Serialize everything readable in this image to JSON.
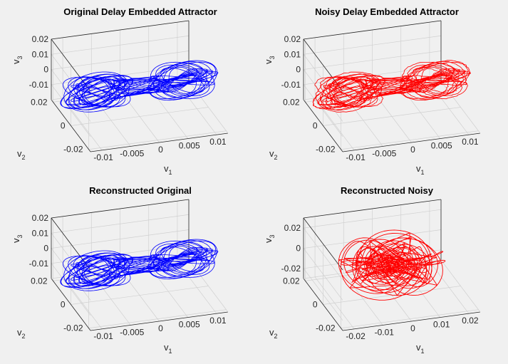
{
  "figure": {
    "background": "#f0f0f0",
    "colors": {
      "original": "#0000ff",
      "noisy": "#ff0000",
      "axis": "#262626",
      "grid": "#d0d0d0"
    }
  },
  "chart_data": [
    {
      "type": "line",
      "subtype": "3d-phase-portrait",
      "title": "Original Delay Embedded Attractor",
      "xlabel": "v",
      "xlabel_sub": "1",
      "ylabel": "v",
      "ylabel_sub": "2",
      "zlabel": "v",
      "zlabel_sub": "3",
      "xlim": [
        -0.012,
        0.012
      ],
      "ylim": [
        -0.022,
        0.022
      ],
      "zlim": [
        -0.02,
        0.02
      ],
      "x_ticks": [
        -0.01,
        -0.005,
        0,
        0.005,
        0.01
      ],
      "x_tick_labels": [
        "-0.01",
        "-0.005",
        "0",
        "0.005",
        "0.01"
      ],
      "y_ticks": [
        -0.02,
        0,
        0.02
      ],
      "y_tick_labels": [
        "-0.02",
        "0",
        "0.02"
      ],
      "z_ticks": [
        -0.01,
        0,
        0.01,
        0.02
      ],
      "z_tick_labels": [
        "-0.01",
        "0",
        "0.01",
        "0.02"
      ],
      "grid": true,
      "series": [
        {
          "color": "#0000ff",
          "shape": "butterfly",
          "lobe_centers_v1": [
            -0.0075,
            0.0075
          ],
          "radius_range": [
            0.0022,
            0.0062
          ],
          "noise": 0
        }
      ]
    },
    {
      "type": "line",
      "subtype": "3d-phase-portrait",
      "title": "Noisy Delay Embedded Attractor",
      "xlabel": "v",
      "xlabel_sub": "1",
      "ylabel": "v",
      "ylabel_sub": "2",
      "zlabel": "v",
      "zlabel_sub": "3",
      "xlim": [
        -0.012,
        0.012
      ],
      "ylim": [
        -0.022,
        0.022
      ],
      "zlim": [
        -0.02,
        0.02
      ],
      "x_ticks": [
        -0.01,
        -0.005,
        0,
        0.005,
        0.01
      ],
      "x_tick_labels": [
        "-0.01",
        "-0.005",
        "0",
        "0.005",
        "0.01"
      ],
      "y_ticks": [
        -0.02,
        0,
        0.02
      ],
      "y_tick_labels": [
        "-0.02",
        "0",
        "0.02"
      ],
      "z_ticks": [
        -0.01,
        0,
        0.01,
        0.02
      ],
      "z_tick_labels": [
        "-0.01",
        "0",
        "0.01",
        "0.02"
      ],
      "grid": true,
      "series": [
        {
          "color": "#ff0000",
          "shape": "butterfly",
          "lobe_centers_v1": [
            -0.0075,
            0.0075
          ],
          "radius_range": [
            0.0022,
            0.0062
          ],
          "noise": 0.00015
        }
      ]
    },
    {
      "type": "line",
      "subtype": "3d-phase-portrait",
      "title": "Reconstructed Original",
      "xlabel": "v",
      "xlabel_sub": "1",
      "ylabel": "v",
      "ylabel_sub": "2",
      "zlabel": "v",
      "zlabel_sub": "3",
      "xlim": [
        -0.012,
        0.012
      ],
      "ylim": [
        -0.022,
        0.022
      ],
      "zlim": [
        -0.02,
        0.02
      ],
      "x_ticks": [
        -0.01,
        -0.005,
        0,
        0.005,
        0.01
      ],
      "x_tick_labels": [
        "-0.01",
        "-0.005",
        "0",
        "0.005",
        "0.01"
      ],
      "y_ticks": [
        -0.02,
        0,
        0.02
      ],
      "y_tick_labels": [
        "-0.02",
        "0",
        "0.02"
      ],
      "z_ticks": [
        -0.01,
        0,
        0.01,
        0.02
      ],
      "z_tick_labels": [
        "-0.01",
        "0",
        "0.01",
        "0.02"
      ],
      "grid": true,
      "series": [
        {
          "color": "#0000ff",
          "shape": "butterfly",
          "lobe_centers_v1": [
            -0.0075,
            0.0075
          ],
          "radius_range": [
            0.0022,
            0.0062
          ],
          "noise": 0
        }
      ]
    },
    {
      "type": "line",
      "subtype": "3d-phase-portrait",
      "title": "Reconstructed Noisy",
      "xlabel": "v",
      "xlabel_sub": "1",
      "ylabel": "v",
      "ylabel_sub": "2",
      "zlabel": "v",
      "zlabel_sub": "3",
      "xlim": [
        -0.024,
        0.024
      ],
      "ylim": [
        -0.022,
        0.022
      ],
      "zlim": [
        -0.03,
        0.03
      ],
      "x_ticks": [
        -0.02,
        -0.01,
        0,
        0.01,
        0.02
      ],
      "x_tick_labels": [
        "-0.02",
        "-0.01",
        "0",
        "0.01",
        "0.02"
      ],
      "y_ticks": [
        -0.02,
        0,
        0.02
      ],
      "y_tick_labels": [
        "-0.02",
        "0",
        "0.02"
      ],
      "z_ticks": [
        -0.02,
        0,
        0.02
      ],
      "z_tick_labels": [
        "-0.02",
        "0",
        "0.02"
      ],
      "grid": true,
      "series": [
        {
          "color": "#ff0000",
          "shape": "tangled-loops",
          "radius_range": [
            0.001,
            0.016
          ],
          "noise": 0
        }
      ]
    }
  ]
}
